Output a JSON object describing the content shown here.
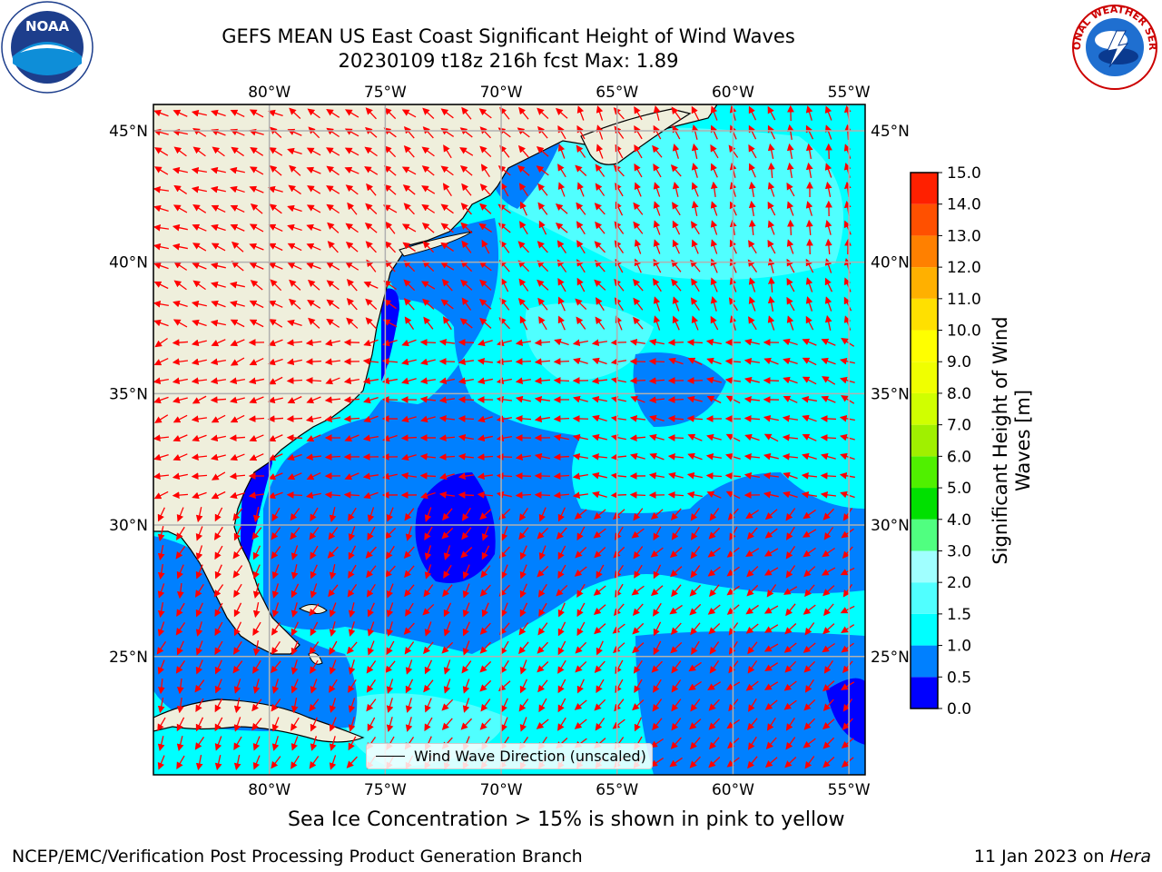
{
  "title": {
    "line1": "GEFS MEAN US East Coast Significant Height of Wind Waves",
    "line2": "20230109 t18z 216h fcst   Max: 1.89"
  },
  "logos": {
    "left": {
      "name": "noaa-logo",
      "text": "NOAA",
      "ring_text": "NATIONAL OCEANIC AND ATMOSPHERIC ADMINISTRATION · U.S. DEPARTMENT OF COMMERCE"
    },
    "right": {
      "name": "nws-logo",
      "ring_text": "NATIONAL WEATHER SERVICE"
    }
  },
  "map": {
    "projection": "PlateCarree",
    "lon_range": [
      -85,
      -54.3
    ],
    "lat_range": [
      20.5,
      46
    ],
    "lon_ticks": [
      {
        "value": -80,
        "label": "80°W"
      },
      {
        "value": -75,
        "label": "75°W"
      },
      {
        "value": -70,
        "label": "70°W"
      },
      {
        "value": -65,
        "label": "65°W"
      },
      {
        "value": -60,
        "label": "60°W"
      },
      {
        "value": -55,
        "label": "55°W"
      }
    ],
    "lat_ticks": [
      {
        "value": 45,
        "label": "45°N"
      },
      {
        "value": 40,
        "label": "40°N"
      },
      {
        "value": 35,
        "label": "35°N"
      },
      {
        "value": 30,
        "label": "30°N"
      },
      {
        "value": 25,
        "label": "25°N"
      }
    ],
    "ocean_regions": [
      {
        "level": "0.5-1.0",
        "description": "coastal and central Atlantic"
      },
      {
        "level": "1.0-1.5",
        "description": "offshore Atlantic"
      },
      {
        "level": "1.5-2.0",
        "description": "scattered patches"
      },
      {
        "level": "0.0-0.5",
        "description": "near-shore and small patches"
      }
    ],
    "arrow_color": "#ff0000",
    "land_color": "#efefdc",
    "grid_color": "#b0b0b0"
  },
  "legend": {
    "label": "Wind Wave Direction (unscaled)"
  },
  "colorbar": {
    "label_line1": "Significant Height of Wind",
    "label_line2": "Waves [m]",
    "levels": [
      {
        "min": 0.0,
        "color": "#0000ff"
      },
      {
        "min": 0.5,
        "color": "#0080ff"
      },
      {
        "min": 1.0,
        "color": "#00ffff"
      },
      {
        "min": 1.5,
        "color": "#50ffff"
      },
      {
        "min": 2.0,
        "color": "#a0ffff"
      },
      {
        "min": 3.0,
        "color": "#50ff80"
      },
      {
        "min": 4.0,
        "color": "#00e000"
      },
      {
        "min": 5.0,
        "color": "#50f000"
      },
      {
        "min": 6.0,
        "color": "#a0f000"
      },
      {
        "min": 7.0,
        "color": "#d0ff00"
      },
      {
        "min": 8.0,
        "color": "#f0ff00"
      },
      {
        "min": 9.0,
        "color": "#ffff00"
      },
      {
        "min": 10.0,
        "color": "#ffe000"
      },
      {
        "min": 11.0,
        "color": "#ffb000"
      },
      {
        "min": 12.0,
        "color": "#ff8000"
      },
      {
        "min": 13.0,
        "color": "#ff5000"
      },
      {
        "min": 14.0,
        "color": "#ff2000"
      }
    ],
    "tick_labels": [
      "0.0",
      "0.5",
      "1.0",
      "1.5",
      "2.0",
      "3.0",
      "4.0",
      "5.0",
      "6.0",
      "7.0",
      "8.0",
      "9.0",
      "10.0",
      "11.0",
      "12.0",
      "13.0",
      "14.0",
      "15.0"
    ]
  },
  "footer": {
    "sea_ice_note": "Sea Ice Concentration > 15% is shown in pink to yellow",
    "left": "NCEP/EMC/Verification Post Processing Product Generation Branch",
    "right_date": "11 Jan 2023 on ",
    "right_host": "Hera"
  }
}
